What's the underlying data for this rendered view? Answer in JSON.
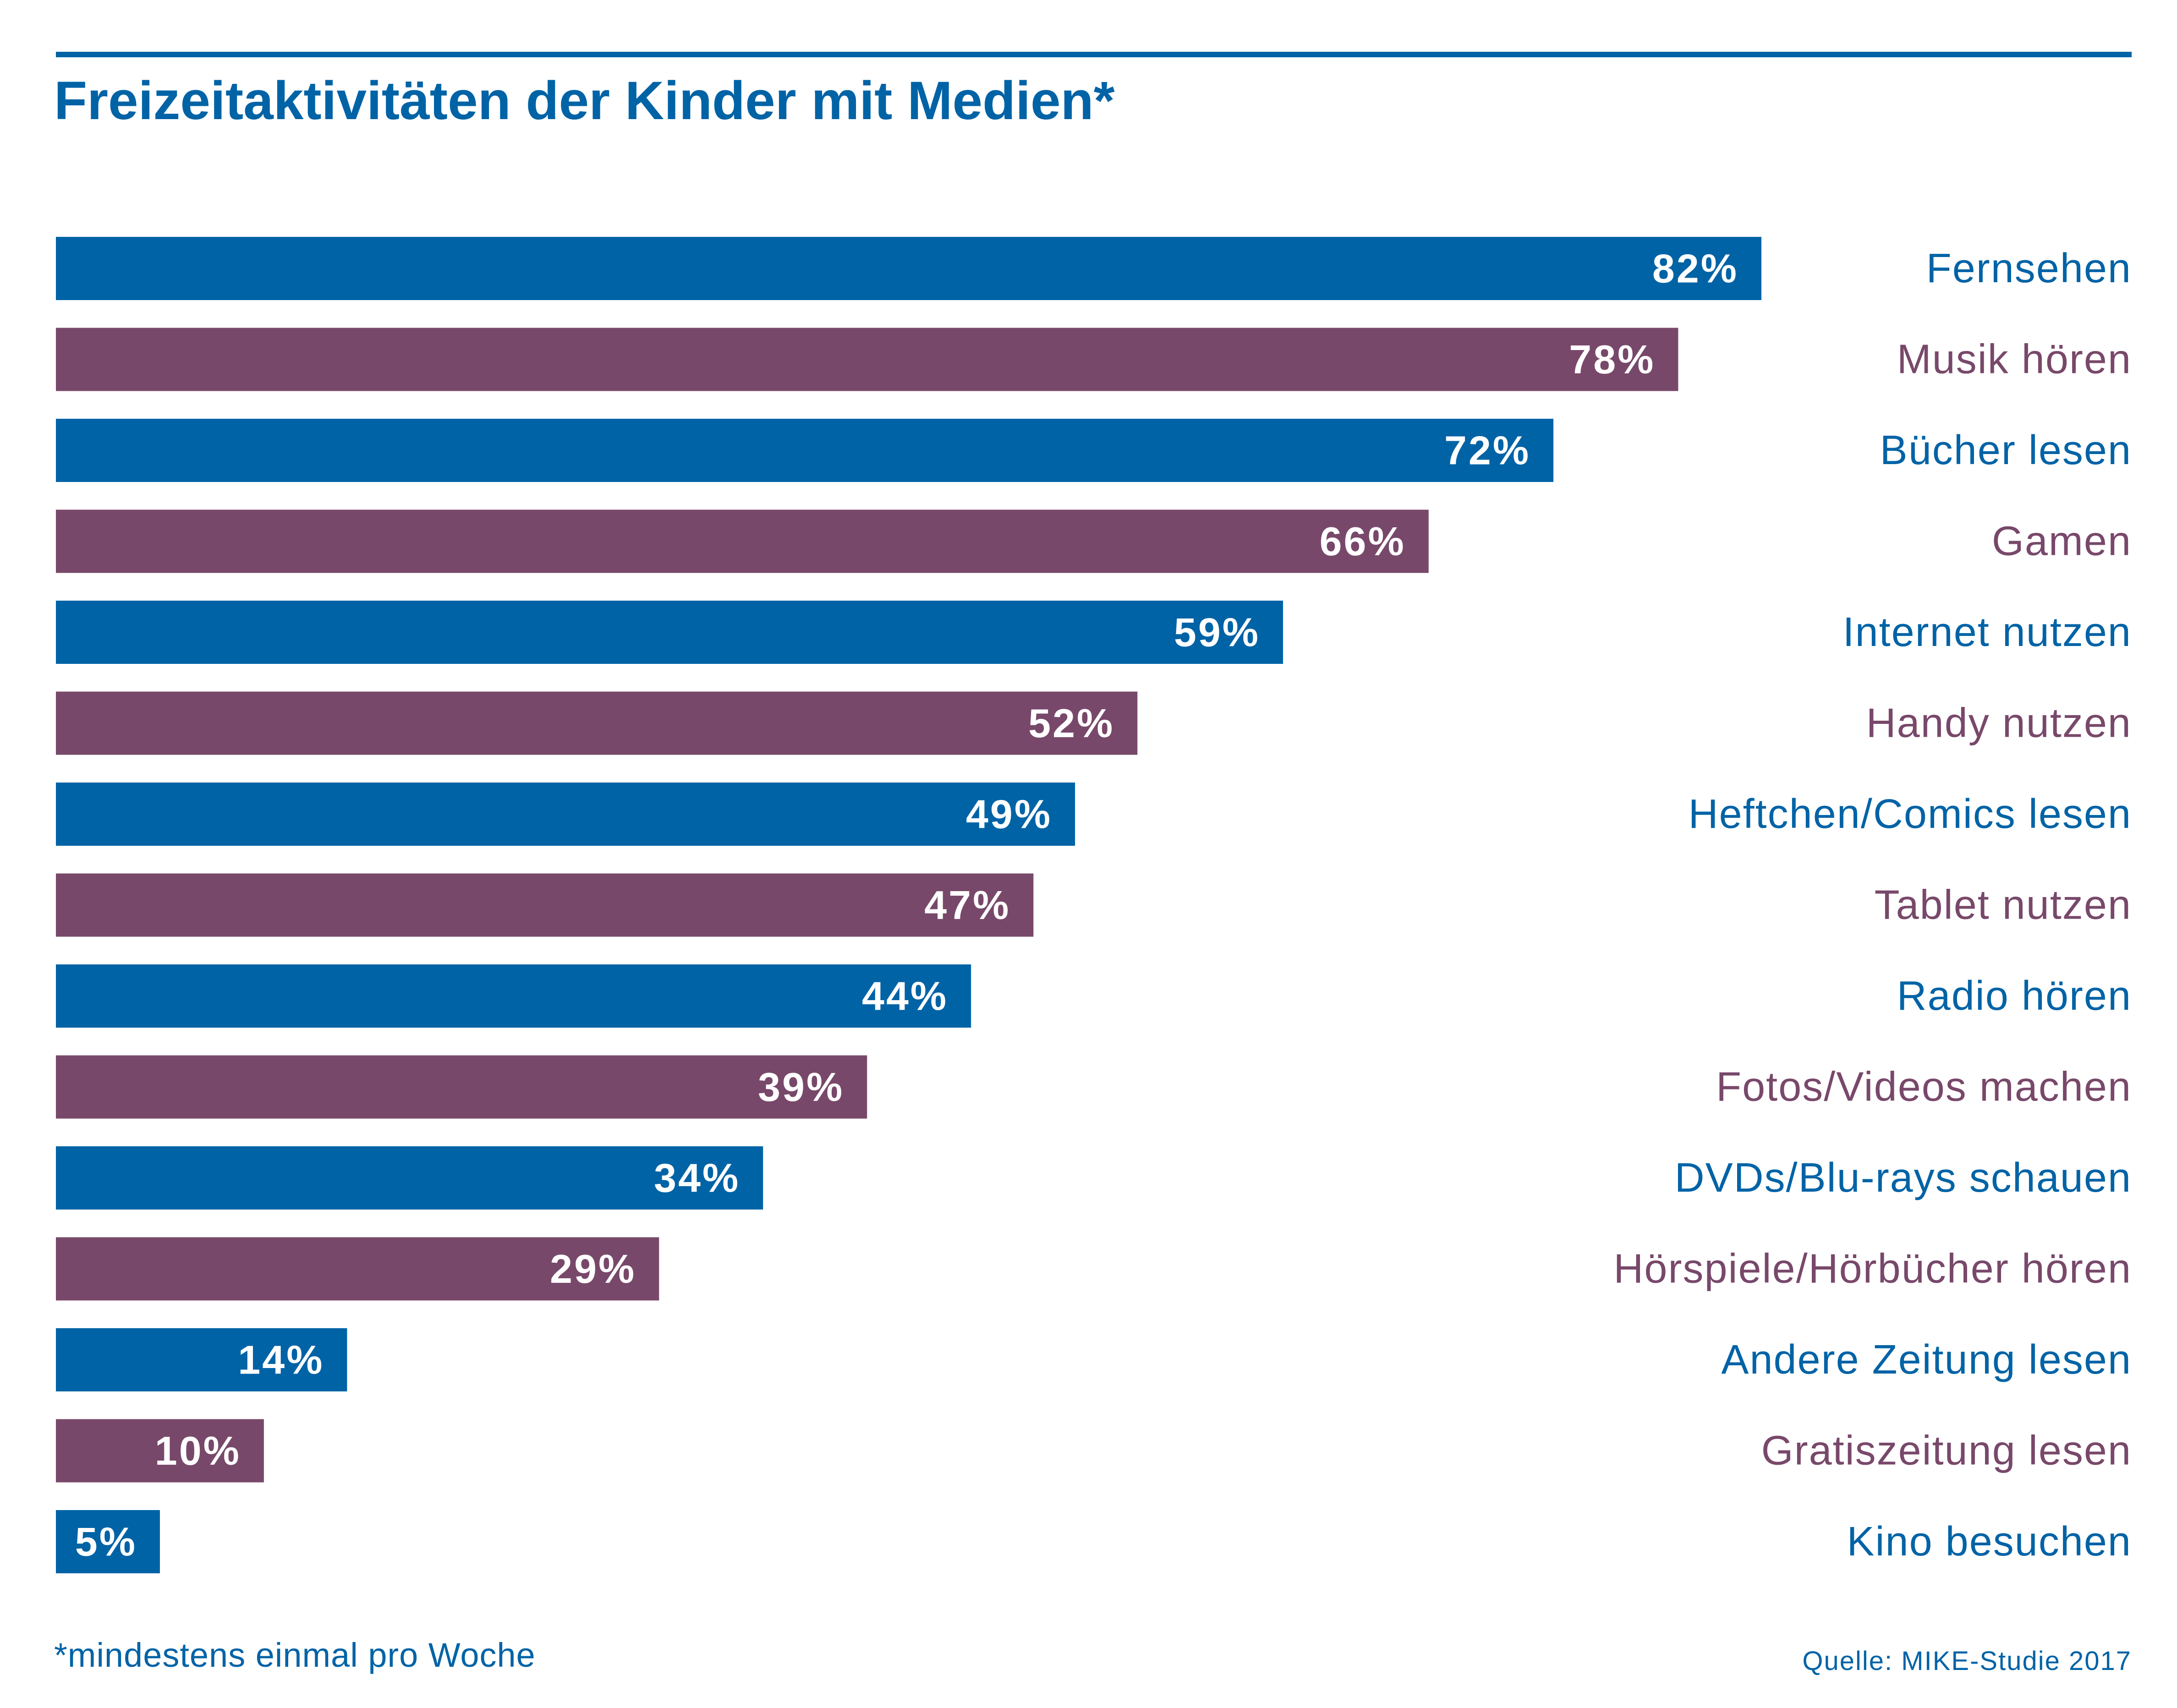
{
  "title": "Freizeitaktivitäten der Kinder mit Medien*",
  "footnote": "*mindestens einmal pro Woche",
  "source": "Quelle: MIKE-Studie 2017",
  "colors": {
    "blue": "#0063a6",
    "purple": "#78486a",
    "value_label": "#ffffff"
  },
  "chart_data": {
    "type": "bar",
    "orientation": "horizontal",
    "value_suffix": "%",
    "xlim": [
      0,
      100
    ],
    "grid": false,
    "categories": [
      "Fernsehen",
      "Musik hören",
      "Bücher lesen",
      "Gamen",
      "Internet nutzen",
      "Handy nutzen",
      "Heftchen/Comics lesen",
      "Tablet nutzen",
      "Radio hören",
      "Fotos/Videos machen",
      "DVDs/Blu-rays schauen",
      "Hörspiele/Hörbücher hören",
      "Andere Zeitung lesen",
      "Gratiszeitung lesen",
      "Kino besuchen"
    ],
    "values": [
      82,
      78,
      72,
      66,
      59,
      52,
      49,
      47,
      44,
      39,
      34,
      29,
      14,
      10,
      5
    ],
    "value_labels": [
      "82%",
      "78%",
      "72%",
      "66%",
      "59%",
      "52%",
      "49%",
      "47%",
      "44%",
      "39%",
      "34%",
      "29%",
      "14%",
      "10%",
      "5%"
    ],
    "bar_colors": [
      "blue",
      "purple",
      "blue",
      "purple",
      "blue",
      "purple",
      "blue",
      "purple",
      "blue",
      "purple",
      "blue",
      "purple",
      "blue",
      "purple",
      "blue"
    ]
  }
}
